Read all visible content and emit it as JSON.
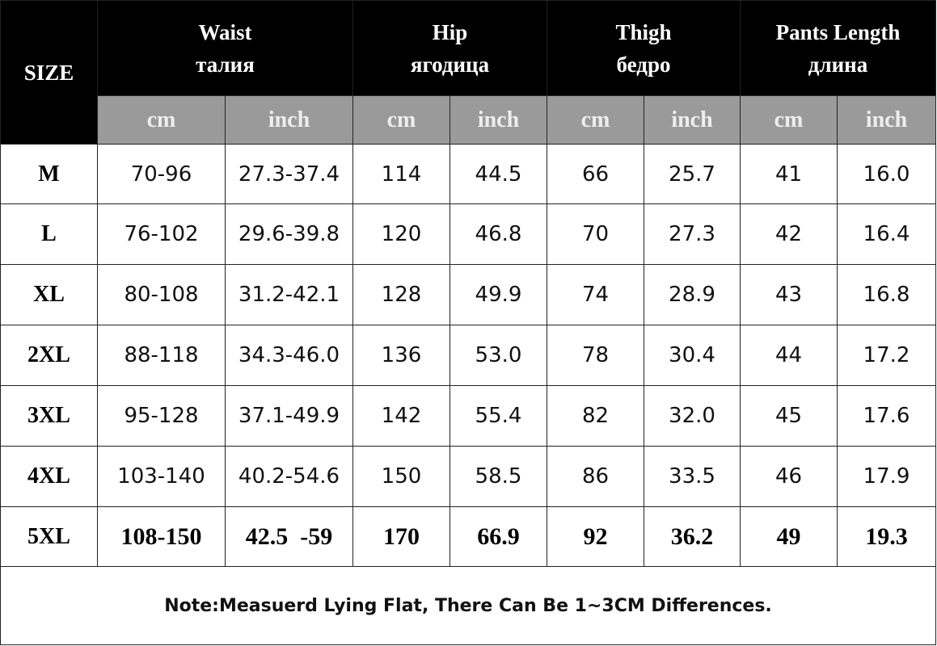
{
  "header": {
    "size_label": "SIZE",
    "groups": [
      {
        "en": "Waist",
        "ru": "талия"
      },
      {
        "en": "Hip",
        "ru": "ягодица"
      },
      {
        "en": "Thigh",
        "ru": "бедро"
      },
      {
        "en": "Pants Length",
        "ru": "длина"
      }
    ],
    "units": [
      "cm",
      "inch",
      "cm",
      "inch",
      "cm",
      "inch",
      "cm",
      "inch"
    ]
  },
  "table": {
    "rows": [
      [
        "M",
        "70-96",
        "27.3-37.4",
        "114",
        "44.5",
        "66",
        "25.7",
        "41",
        "16.0"
      ],
      [
        "L",
        "76-102",
        "29.6-39.8",
        "120",
        "46.8",
        "70",
        "27.3",
        "42",
        "16.4"
      ],
      [
        "XL",
        "80-108",
        "31.2-42.1",
        "128",
        "49.9",
        "74",
        "28.9",
        "43",
        "16.8"
      ],
      [
        "2XL",
        "88-118",
        "34.3-46.0",
        "136",
        "53.0",
        "78",
        "30.4",
        "44",
        "17.2"
      ],
      [
        "3XL",
        "95-128",
        "37.1-49.9",
        "142",
        "55.4",
        "82",
        "32.0",
        "45",
        "17.6"
      ],
      [
        "4XL",
        "103-140",
        "40.2-54.6",
        "150",
        "58.5",
        "86",
        "33.5",
        "46",
        "17.9"
      ],
      [
        "5XL",
        "108-150",
        "42.5  -59",
        "170",
        "66.9",
        "92",
        "36.2",
        "49",
        "19.3"
      ]
    ]
  },
  "note": "Note:Measuerd Lying Flat, There Can Be 1~3CM Differences."
}
